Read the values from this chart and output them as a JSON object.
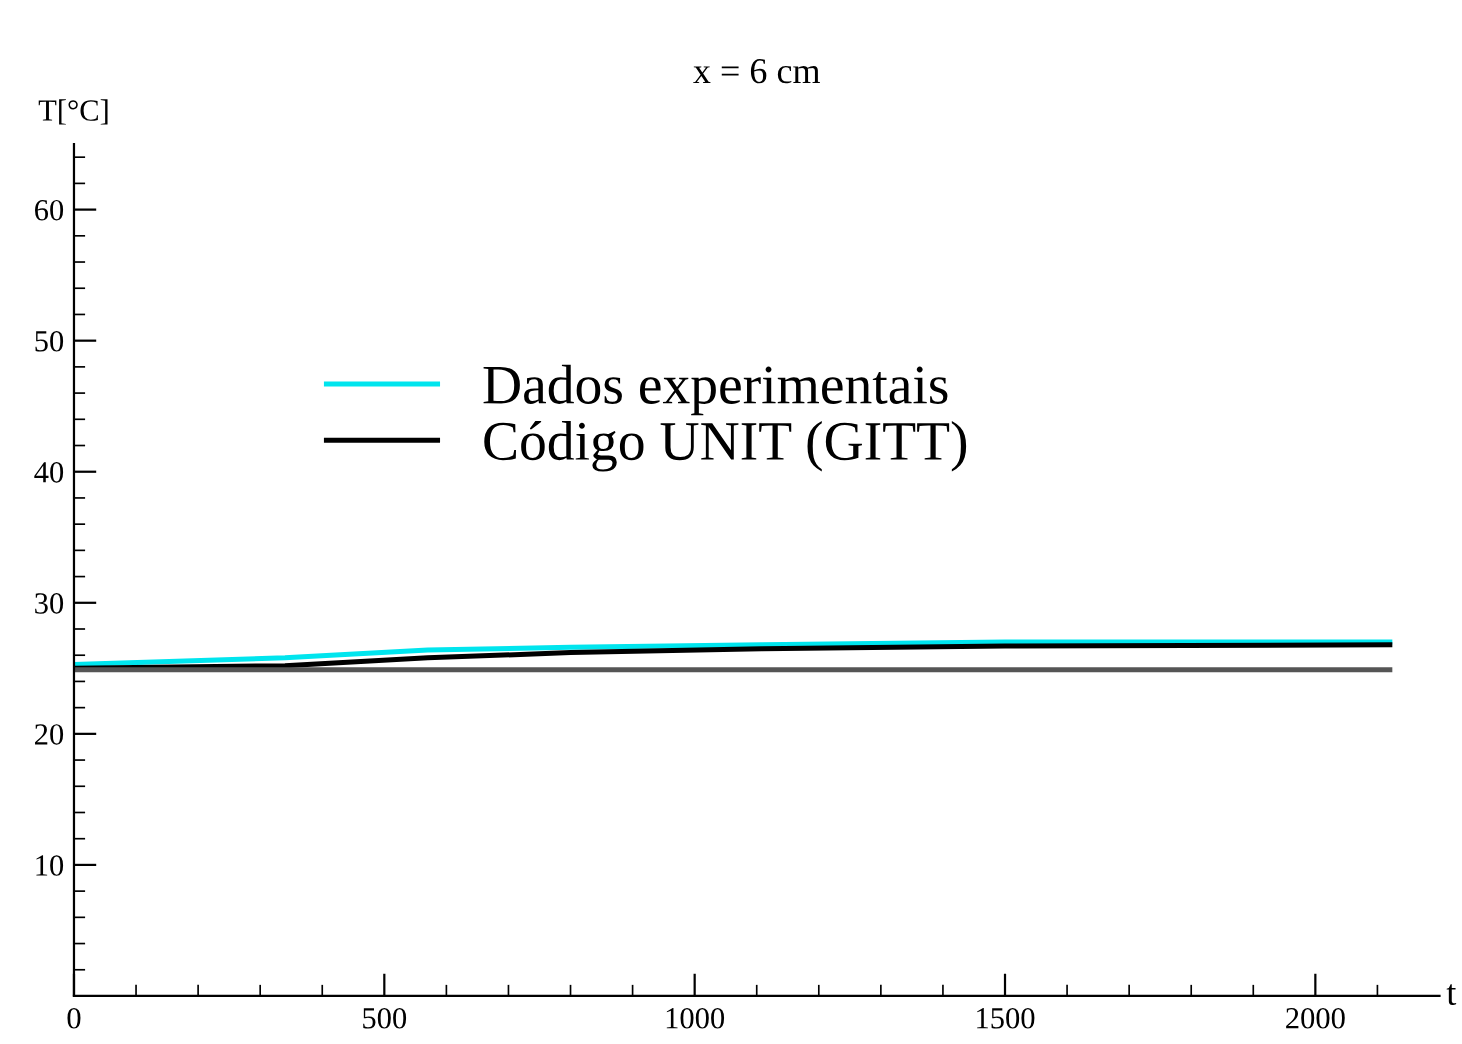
{
  "chart_data": {
    "type": "line",
    "title": "x = 6 cm",
    "xlabel": "t",
    "ylabel": "T[°C]",
    "x": [
      0,
      340,
      570,
      800,
      1108,
      1500,
      2120
    ],
    "series": [
      {
        "name": "Dados experimentais",
        "color": "#00e5ee",
        "values": [
          25.3,
          25.8,
          26.4,
          26.6,
          26.8,
          27.0,
          27.0
        ]
      },
      {
        "name": "Código UNIT (GITT)",
        "color": "#000000",
        "values": [
          25.0,
          25.2,
          25.8,
          26.2,
          26.5,
          26.7,
          26.8
        ]
      },
      {
        "color": "#555555",
        "values": [
          24.9,
          24.9,
          24.9,
          24.9,
          24.9,
          24.9,
          24.9
        ]
      }
    ],
    "xlim": [
      0,
      2200
    ],
    "ylim": [
      0,
      65
    ],
    "xticks": [
      0,
      {
        "value": 100,
        "label": null
      },
      {
        "value": 200,
        "label": null
      },
      {
        "value": 300,
        "label": null
      },
      {
        "value": 400,
        "label": null
      },
      500,
      {
        "value": 600,
        "label": null
      },
      {
        "value": 700,
        "label": null
      },
      {
        "value": 800,
        "label": null
      },
      {
        "value": 900,
        "label": null
      },
      1000,
      {
        "value": 1100,
        "label": null
      },
      {
        "value": 1200,
        "label": null
      },
      {
        "value": 1300,
        "label": null
      },
      {
        "value": 1400,
        "label": null
      },
      1500,
      {
        "value": 1600,
        "label": null
      },
      {
        "value": 1700,
        "label": null
      },
      {
        "value": 1800,
        "label": null
      },
      {
        "value": 1900,
        "label": null
      },
      2000,
      {
        "value": 2100,
        "label": null
      }
    ],
    "yticks": [
      {
        "value": 2,
        "label": null
      },
      {
        "value": 4,
        "label": null
      },
      {
        "value": 6,
        "label": null
      },
      {
        "value": 8,
        "label": null
      },
      10,
      {
        "value": 12,
        "label": null
      },
      {
        "value": 14,
        "label": null
      },
      {
        "value": 16,
        "label": null
      },
      {
        "value": 18,
        "label": null
      },
      20,
      {
        "value": 22,
        "label": null
      },
      {
        "value": 24,
        "label": null
      },
      {
        "value": 26,
        "label": null
      },
      {
        "value": 28,
        "label": null
      },
      30,
      {
        "value": 32,
        "label": null
      },
      {
        "value": 34,
        "label": null
      },
      {
        "value": 36,
        "label": null
      },
      {
        "value": 38,
        "label": null
      },
      40,
      {
        "value": 42,
        "label": null
      },
      {
        "value": 44,
        "label": null
      },
      {
        "value": 46,
        "label": null
      },
      {
        "value": 48,
        "label": null
      },
      50,
      {
        "value": 52,
        "label": null
      },
      {
        "value": 54,
        "label": null
      },
      {
        "value": 56,
        "label": null
      },
      {
        "value": 58,
        "label": null
      },
      60,
      {
        "value": 62,
        "label": null
      },
      {
        "value": 64,
        "label": null
      }
    ],
    "grid": false,
    "legend": "top center",
    "marker": "none",
    "line_style": "solid"
  }
}
